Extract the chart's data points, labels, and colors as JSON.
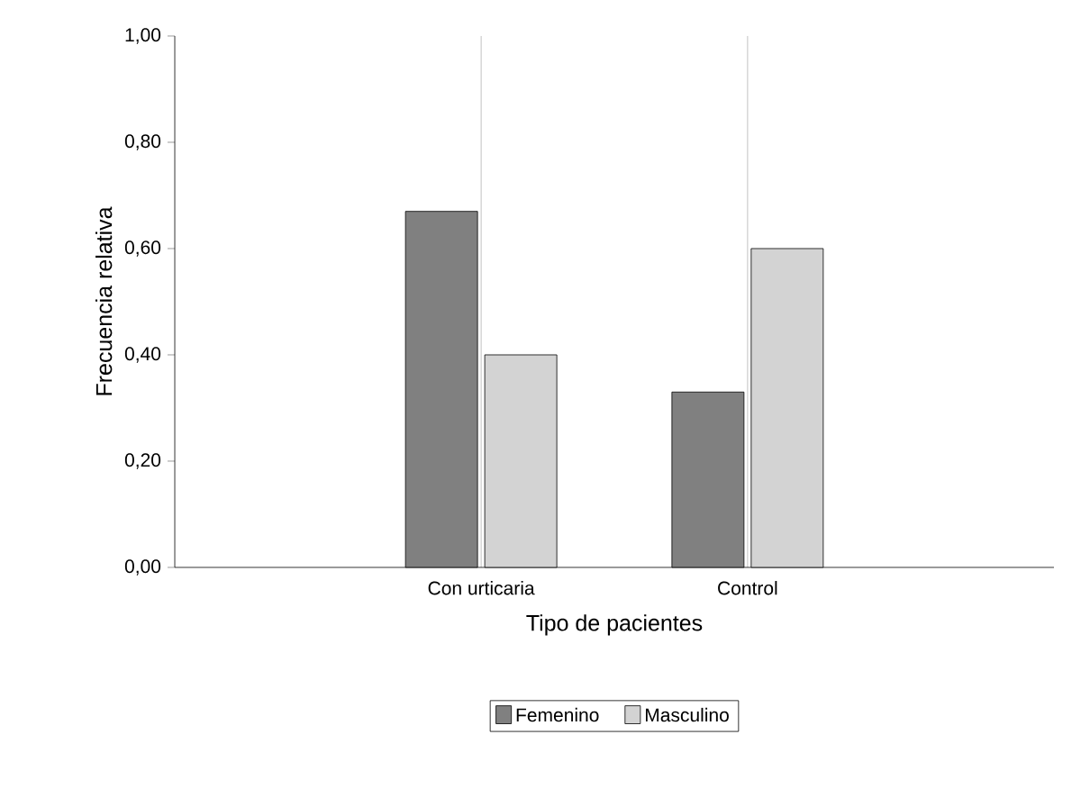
{
  "chart_data": {
    "type": "bar",
    "xlabel": "Tipo de pacientes",
    "ylabel": "Frecuencia relativa",
    "categories": [
      "Con urticaria",
      "Control"
    ],
    "series": [
      {
        "name": "Femenino",
        "color": "#808080",
        "values": [
          0.67,
          0.33
        ]
      },
      {
        "name": "Masculino",
        "color": "#d3d3d3",
        "values": [
          0.4,
          0.6
        ]
      }
    ],
    "ylim": [
      0,
      1
    ],
    "yticks": [
      {
        "value": 0,
        "label": "0,00"
      },
      {
        "value": 0.2,
        "label": "0,20"
      },
      {
        "value": 0.4,
        "label": "0,40"
      },
      {
        "value": 0.6,
        "label": "0,60"
      },
      {
        "value": 0.8,
        "label": "0,80"
      },
      {
        "value": 1,
        "label": "1,00"
      }
    ],
    "grid": "x",
    "legend": "bottom"
  }
}
